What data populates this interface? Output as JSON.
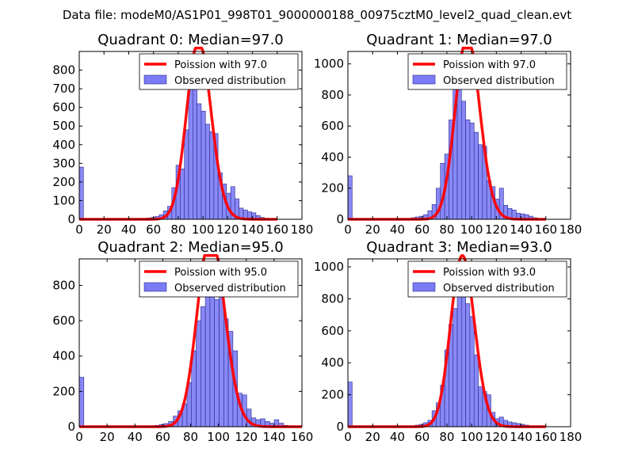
{
  "suptitle": "Data file: modeM0/AS1P01_998T01_9000000188_00975cztM0_level2_quad_clean.evt",
  "colors": {
    "bars": "#7b7bf5",
    "bar_edge": "#2b2b90",
    "poisson": "#ff0000",
    "background": "#ffffff"
  },
  "chart_data": [
    {
      "type": "bar",
      "title": "Quadrant 0: Median=97.0",
      "median": 97.0,
      "xlim": [
        0,
        180
      ],
      "ylim": [
        0,
        900
      ],
      "xticks": [
        0,
        20,
        40,
        60,
        80,
        100,
        120,
        140,
        160,
        180
      ],
      "yticks": [
        0,
        100,
        200,
        300,
        400,
        500,
        600,
        700,
        800
      ],
      "bin_width": 3.4,
      "bins": [
        {
          "x": 0,
          "y": 280
        },
        {
          "x": 51,
          "y": 5
        },
        {
          "x": 54.4,
          "y": 7
        },
        {
          "x": 57.8,
          "y": 10
        },
        {
          "x": 61.2,
          "y": 15
        },
        {
          "x": 64.6,
          "y": 25
        },
        {
          "x": 68,
          "y": 45
        },
        {
          "x": 71.4,
          "y": 70
        },
        {
          "x": 74.8,
          "y": 170
        },
        {
          "x": 78.2,
          "y": 290
        },
        {
          "x": 81.6,
          "y": 270
        },
        {
          "x": 85,
          "y": 480
        },
        {
          "x": 88.4,
          "y": 760
        },
        {
          "x": 91.8,
          "y": 810
        },
        {
          "x": 95.2,
          "y": 620
        },
        {
          "x": 98.6,
          "y": 580
        },
        {
          "x": 102,
          "y": 510
        },
        {
          "x": 105.4,
          "y": 470
        },
        {
          "x": 108.8,
          "y": 460
        },
        {
          "x": 112.2,
          "y": 250
        },
        {
          "x": 115.6,
          "y": 190
        },
        {
          "x": 119,
          "y": 140
        },
        {
          "x": 122.4,
          "y": 175
        },
        {
          "x": 125.8,
          "y": 110
        },
        {
          "x": 129.2,
          "y": 60
        },
        {
          "x": 132.6,
          "y": 50
        },
        {
          "x": 136,
          "y": 40
        },
        {
          "x": 139.4,
          "y": 35
        },
        {
          "x": 142.8,
          "y": 20
        },
        {
          "x": 146.2,
          "y": 10
        },
        {
          "x": 149.6,
          "y": 5
        }
      ],
      "legend": [
        "Poission with 97.0",
        "Observed distribution"
      ]
    },
    {
      "type": "bar",
      "title": "Quadrant 1: Median=97.0",
      "median": 97.0,
      "xlim": [
        0,
        180
      ],
      "ylim": [
        0,
        1080
      ],
      "xticks": [
        0,
        20,
        40,
        60,
        80,
        100,
        120,
        140,
        160,
        180
      ],
      "yticks": [
        0,
        200,
        400,
        600,
        800,
        1000
      ],
      "bin_width": 3.4,
      "bins": [
        {
          "x": 0,
          "y": 280
        },
        {
          "x": 51,
          "y": 10
        },
        {
          "x": 54.4,
          "y": 15
        },
        {
          "x": 57.8,
          "y": 20
        },
        {
          "x": 61.2,
          "y": 30
        },
        {
          "x": 64.6,
          "y": 55
        },
        {
          "x": 68,
          "y": 95
        },
        {
          "x": 71.4,
          "y": 200
        },
        {
          "x": 74.8,
          "y": 360
        },
        {
          "x": 78.2,
          "y": 420
        },
        {
          "x": 81.6,
          "y": 640
        },
        {
          "x": 85,
          "y": 890
        },
        {
          "x": 88.4,
          "y": 900
        },
        {
          "x": 91.8,
          "y": 760
        },
        {
          "x": 95.2,
          "y": 640
        },
        {
          "x": 98.6,
          "y": 620
        },
        {
          "x": 102,
          "y": 560
        },
        {
          "x": 105.4,
          "y": 480
        },
        {
          "x": 108.8,
          "y": 470
        },
        {
          "x": 112.2,
          "y": 250
        },
        {
          "x": 115.6,
          "y": 210
        },
        {
          "x": 119,
          "y": 130
        },
        {
          "x": 122.4,
          "y": 200
        },
        {
          "x": 125.8,
          "y": 90
        },
        {
          "x": 129.2,
          "y": 70
        },
        {
          "x": 132.6,
          "y": 60
        },
        {
          "x": 136,
          "y": 40
        },
        {
          "x": 139.4,
          "y": 35
        },
        {
          "x": 142.8,
          "y": 30
        },
        {
          "x": 146.2,
          "y": 20
        },
        {
          "x": 149.6,
          "y": 10
        }
      ],
      "legend": [
        "Poission with 97.0",
        "Observed distribution"
      ]
    },
    {
      "type": "bar",
      "title": "Quadrant 2: Median=95.0",
      "median": 95.0,
      "xlim": [
        0,
        160
      ],
      "ylim": [
        0,
        950
      ],
      "xticks": [
        0,
        20,
        40,
        60,
        80,
        100,
        120,
        140,
        160
      ],
      "yticks": [
        0,
        200,
        400,
        600,
        800
      ],
      "bin_width": 3.3,
      "bins": [
        {
          "x": 0,
          "y": 280
        },
        {
          "x": 51,
          "y": 5
        },
        {
          "x": 54.3,
          "y": 8
        },
        {
          "x": 57.6,
          "y": 12
        },
        {
          "x": 60.9,
          "y": 18
        },
        {
          "x": 64.2,
          "y": 30
        },
        {
          "x": 67.5,
          "y": 60
        },
        {
          "x": 70.8,
          "y": 90
        },
        {
          "x": 74.1,
          "y": 130
        },
        {
          "x": 77.4,
          "y": 250
        },
        {
          "x": 80.7,
          "y": 430
        },
        {
          "x": 84,
          "y": 600
        },
        {
          "x": 87.3,
          "y": 680
        },
        {
          "x": 90.6,
          "y": 900
        },
        {
          "x": 93.9,
          "y": 830
        },
        {
          "x": 97.2,
          "y": 720
        },
        {
          "x": 100.5,
          "y": 760
        },
        {
          "x": 103.8,
          "y": 610
        },
        {
          "x": 107.1,
          "y": 540
        },
        {
          "x": 110.4,
          "y": 430
        },
        {
          "x": 113.7,
          "y": 190
        },
        {
          "x": 117,
          "y": 180
        },
        {
          "x": 120.3,
          "y": 100
        },
        {
          "x": 123.6,
          "y": 50
        },
        {
          "x": 126.9,
          "y": 40
        },
        {
          "x": 130.2,
          "y": 45
        },
        {
          "x": 133.5,
          "y": 30
        },
        {
          "x": 136.8,
          "y": 20
        },
        {
          "x": 140.1,
          "y": 40
        },
        {
          "x": 143.4,
          "y": 20
        },
        {
          "x": 146.7,
          "y": 8
        }
      ],
      "legend": [
        "Poission with 95.0",
        "Observed distribution"
      ]
    },
    {
      "type": "bar",
      "title": "Quadrant 3: Median=93.0",
      "median": 93.0,
      "xlim": [
        0,
        180
      ],
      "ylim": [
        0,
        1050
      ],
      "xticks": [
        0,
        20,
        40,
        60,
        80,
        100,
        120,
        140,
        160,
        180
      ],
      "yticks": [
        0,
        200,
        400,
        600,
        800,
        1000
      ],
      "bin_width": 3.4,
      "bins": [
        {
          "x": 0,
          "y": 280
        },
        {
          "x": 51,
          "y": 5
        },
        {
          "x": 54.4,
          "y": 10
        },
        {
          "x": 57.8,
          "y": 15
        },
        {
          "x": 61.2,
          "y": 25
        },
        {
          "x": 64.6,
          "y": 40
        },
        {
          "x": 68,
          "y": 100
        },
        {
          "x": 71.4,
          "y": 150
        },
        {
          "x": 74.8,
          "y": 260
        },
        {
          "x": 78.2,
          "y": 480
        },
        {
          "x": 81.6,
          "y": 640
        },
        {
          "x": 85,
          "y": 740
        },
        {
          "x": 88.4,
          "y": 970
        },
        {
          "x": 91.8,
          "y": 980
        },
        {
          "x": 95.2,
          "y": 770
        },
        {
          "x": 98.6,
          "y": 690
        },
        {
          "x": 102,
          "y": 450
        },
        {
          "x": 105.4,
          "y": 250
        },
        {
          "x": 108.8,
          "y": 220
        },
        {
          "x": 112.2,
          "y": 200
        },
        {
          "x": 115.6,
          "y": 90
        },
        {
          "x": 119,
          "y": 50
        },
        {
          "x": 122.4,
          "y": 60
        },
        {
          "x": 125.8,
          "y": 40
        },
        {
          "x": 129.2,
          "y": 30
        },
        {
          "x": 132.6,
          "y": 25
        },
        {
          "x": 136,
          "y": 20
        },
        {
          "x": 139.4,
          "y": 15
        },
        {
          "x": 142.8,
          "y": 10
        }
      ],
      "legend": [
        "Poission with 93.0",
        "Observed distribution"
      ]
    }
  ]
}
